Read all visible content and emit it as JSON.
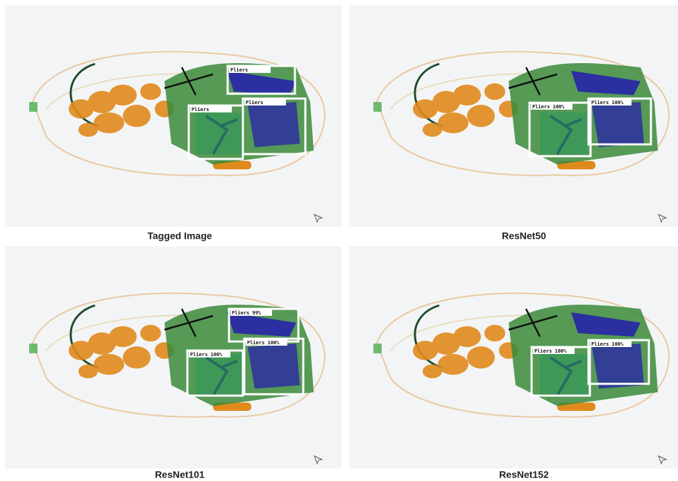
{
  "panels": [
    {
      "caption": "Tagged Image",
      "detections": [
        {
          "label": "Pliers"
        },
        {
          "label": "Pliers"
        },
        {
          "label": "Pliers"
        }
      ]
    },
    {
      "caption": "ResNet50",
      "detections": [
        {
          "label": "Pliers 100%"
        },
        {
          "label": "Pliers 100%"
        }
      ]
    },
    {
      "caption": "ResNet101",
      "detections": [
        {
          "label": "Pliers 99%"
        },
        {
          "label": "Pliers 100%"
        },
        {
          "label": "Pliers 100%"
        }
      ]
    },
    {
      "caption": "ResNet152",
      "detections": [
        {
          "label": "Pliers 100%"
        },
        {
          "label": "Pliers 100%"
        }
      ]
    }
  ]
}
